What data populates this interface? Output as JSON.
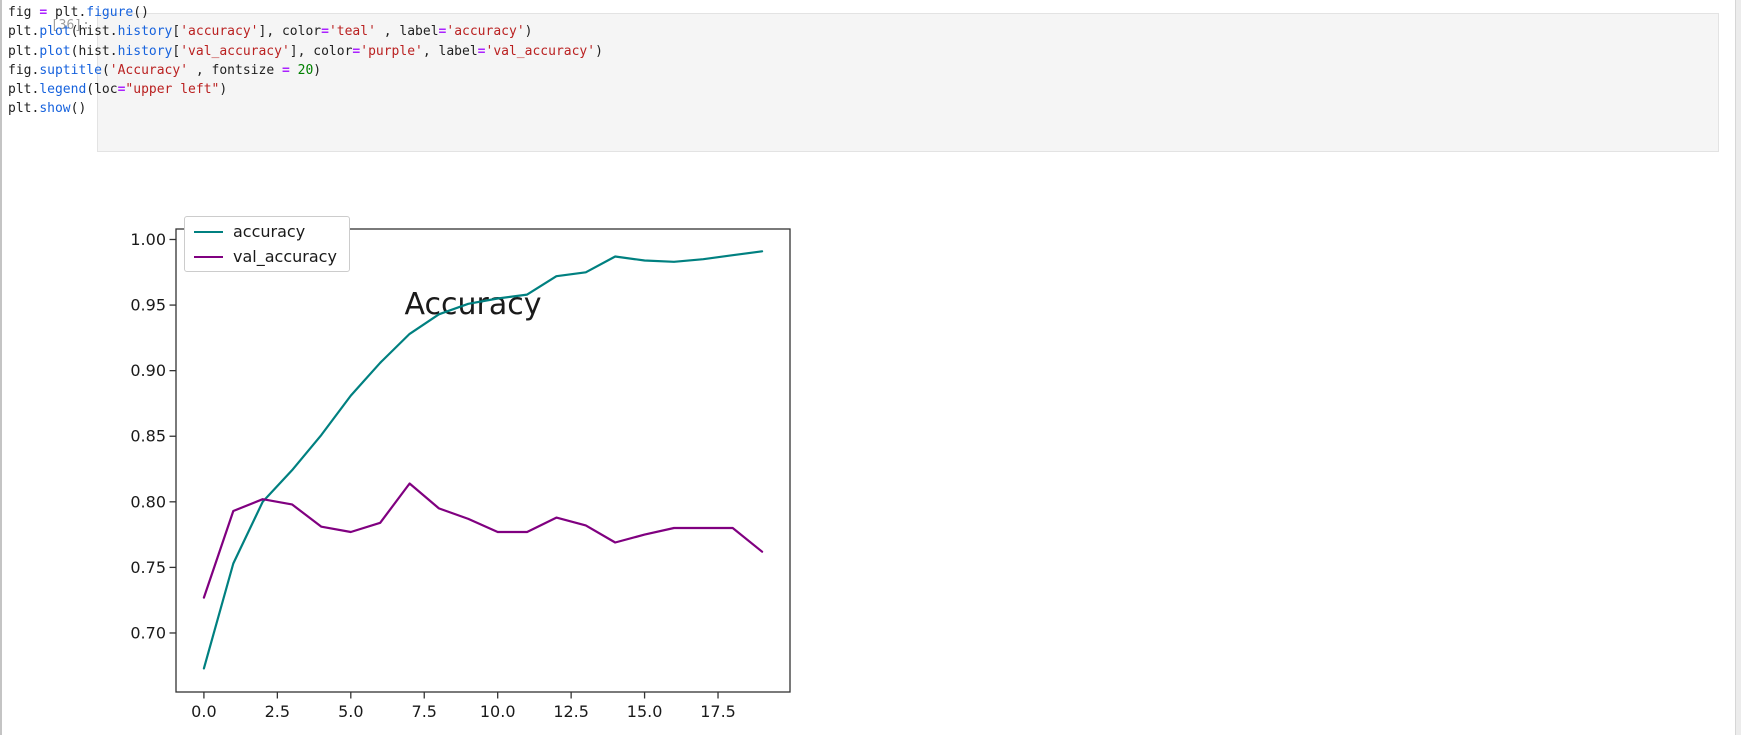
{
  "notebook": {
    "cell": {
      "execution_count": "[36]:",
      "language": "python",
      "syntax_colors": {
        "p": "#212121",
        "pr": "#1662dd",
        "o": "#aa22ff",
        "s": "#ba2121",
        "n": "#008000"
      },
      "code_lines": [
        [
          {
            "c": "p",
            "t": "fig "
          },
          {
            "c": "o",
            "t": "="
          },
          {
            "c": "p",
            "t": " plt."
          },
          {
            "c": "pr",
            "t": "figure"
          },
          {
            "c": "p",
            "t": "()"
          }
        ],
        [
          {
            "c": "p",
            "t": "plt."
          },
          {
            "c": "pr",
            "t": "plot"
          },
          {
            "c": "p",
            "t": "(hist."
          },
          {
            "c": "pr",
            "t": "history"
          },
          {
            "c": "p",
            "t": "["
          },
          {
            "c": "s",
            "t": "'accuracy'"
          },
          {
            "c": "p",
            "t": "], color"
          },
          {
            "c": "o",
            "t": "="
          },
          {
            "c": "s",
            "t": "'teal'"
          },
          {
            "c": "p",
            "t": " , label"
          },
          {
            "c": "o",
            "t": "="
          },
          {
            "c": "s",
            "t": "'accuracy'"
          },
          {
            "c": "p",
            "t": ")"
          }
        ],
        [
          {
            "c": "p",
            "t": "plt."
          },
          {
            "c": "pr",
            "t": "plot"
          },
          {
            "c": "p",
            "t": "(hist."
          },
          {
            "c": "pr",
            "t": "history"
          },
          {
            "c": "p",
            "t": "["
          },
          {
            "c": "s",
            "t": "'val_accuracy'"
          },
          {
            "c": "p",
            "t": "], color"
          },
          {
            "c": "o",
            "t": "="
          },
          {
            "c": "s",
            "t": "'purple'"
          },
          {
            "c": "p",
            "t": ", label"
          },
          {
            "c": "o",
            "t": "="
          },
          {
            "c": "s",
            "t": "'val_accuracy'"
          },
          {
            "c": "p",
            "t": ")"
          }
        ],
        [
          {
            "c": "p",
            "t": "fig."
          },
          {
            "c": "pr",
            "t": "suptitle"
          },
          {
            "c": "p",
            "t": "("
          },
          {
            "c": "s",
            "t": "'Accuracy'"
          },
          {
            "c": "p",
            "t": " , fontsize "
          },
          {
            "c": "o",
            "t": "="
          },
          {
            "c": "p",
            "t": " "
          },
          {
            "c": "n",
            "t": "20"
          },
          {
            "c": "p",
            "t": ")"
          }
        ],
        [
          {
            "c": "p",
            "t": "plt."
          },
          {
            "c": "pr",
            "t": "legend"
          },
          {
            "c": "p",
            "t": "(loc"
          },
          {
            "c": "o",
            "t": "="
          },
          {
            "c": "s",
            "t": "\"upper left\""
          },
          {
            "c": "p",
            "t": ")"
          }
        ],
        [
          {
            "c": "p",
            "t": "plt."
          },
          {
            "c": "pr",
            "t": "show"
          },
          {
            "c": "p",
            "t": "()"
          }
        ]
      ]
    }
  },
  "chart_data": {
    "type": "line",
    "title": "Accuracy",
    "xlabel": "",
    "ylabel": "",
    "grid": false,
    "x": [
      0,
      1,
      2,
      3,
      4,
      5,
      6,
      7,
      8,
      9,
      10,
      11,
      12,
      13,
      14,
      15,
      16,
      17,
      18,
      19
    ],
    "series": [
      {
        "name": "accuracy",
        "color": "#008080",
        "values": [
          0.673,
          0.753,
          0.8,
          0.824,
          0.851,
          0.881,
          0.906,
          0.928,
          0.943,
          0.951,
          0.955,
          0.958,
          0.972,
          0.975,
          0.987,
          0.984,
          0.983,
          0.985,
          0.988,
          0.991
        ]
      },
      {
        "name": "val_accuracy",
        "color": "#800080",
        "values": [
          0.727,
          0.793,
          0.802,
          0.798,
          0.781,
          0.777,
          0.784,
          0.814,
          0.795,
          0.787,
          0.777,
          0.777,
          0.788,
          0.782,
          0.769,
          0.775,
          0.78,
          0.78,
          0.78,
          0.762
        ]
      }
    ],
    "xlim": [
      -0.95,
      19.95
    ],
    "ylim": [
      0.655,
      1.008
    ],
    "xticks": [
      0,
      2.5,
      5,
      7.5,
      10,
      12.5,
      15,
      17.5
    ],
    "xtick_labels": [
      "0.0",
      "2.5",
      "5.0",
      "7.5",
      "10.0",
      "12.5",
      "15.0",
      "17.5"
    ],
    "yticks": [
      0.7,
      0.75,
      0.8,
      0.85,
      0.9,
      0.95,
      1.0
    ],
    "ytick_labels": [
      "0.70",
      "0.75",
      "0.80",
      "0.85",
      "0.90",
      "0.95",
      "1.00"
    ],
    "legend": {
      "position": "upper left",
      "entries": [
        "accuracy",
        "val_accuracy"
      ]
    },
    "axis_color": "#333333",
    "tick_label_color": "#1a1a1a"
  }
}
